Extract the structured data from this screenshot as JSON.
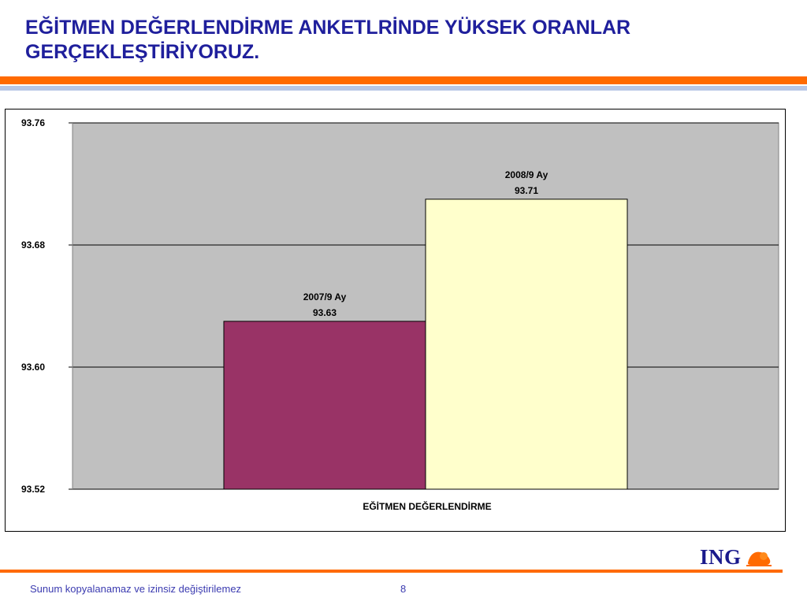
{
  "slide": {
    "title": "EĞİTMEN DEĞERLENDİRME ANKETLRİNDE YÜKSEK ORANLAR GERÇEKLEŞTİRİYORUZ.",
    "footer": "Sunum kopyalanamaz ve izinsiz değiştirilemez",
    "page_number": "8",
    "logo_text": "ING",
    "colors": {
      "title": "#1f1f9c",
      "accent": "#ff6a00",
      "divider": "#b7c6e6"
    }
  },
  "chart_data": {
    "type": "bar",
    "categories": [
      "EĞİTMEN DEĞERLENDİRME"
    ],
    "xlabel": "EĞİTMEN DEĞERLENDİRME",
    "ylim": [
      93.52,
      93.76
    ],
    "yticks": [
      "93.76",
      "93.68",
      "93.60",
      "93.52"
    ],
    "grid": true,
    "plot_background": "#c0c0c0",
    "bars": [
      {
        "label": "2007/9 Ay",
        "value": 93.63,
        "value_label": "93.63",
        "color": "#993366"
      },
      {
        "label": "2008/9 Ay",
        "value": 93.71,
        "value_label": "93.71",
        "color": "#ffffcc"
      }
    ]
  }
}
